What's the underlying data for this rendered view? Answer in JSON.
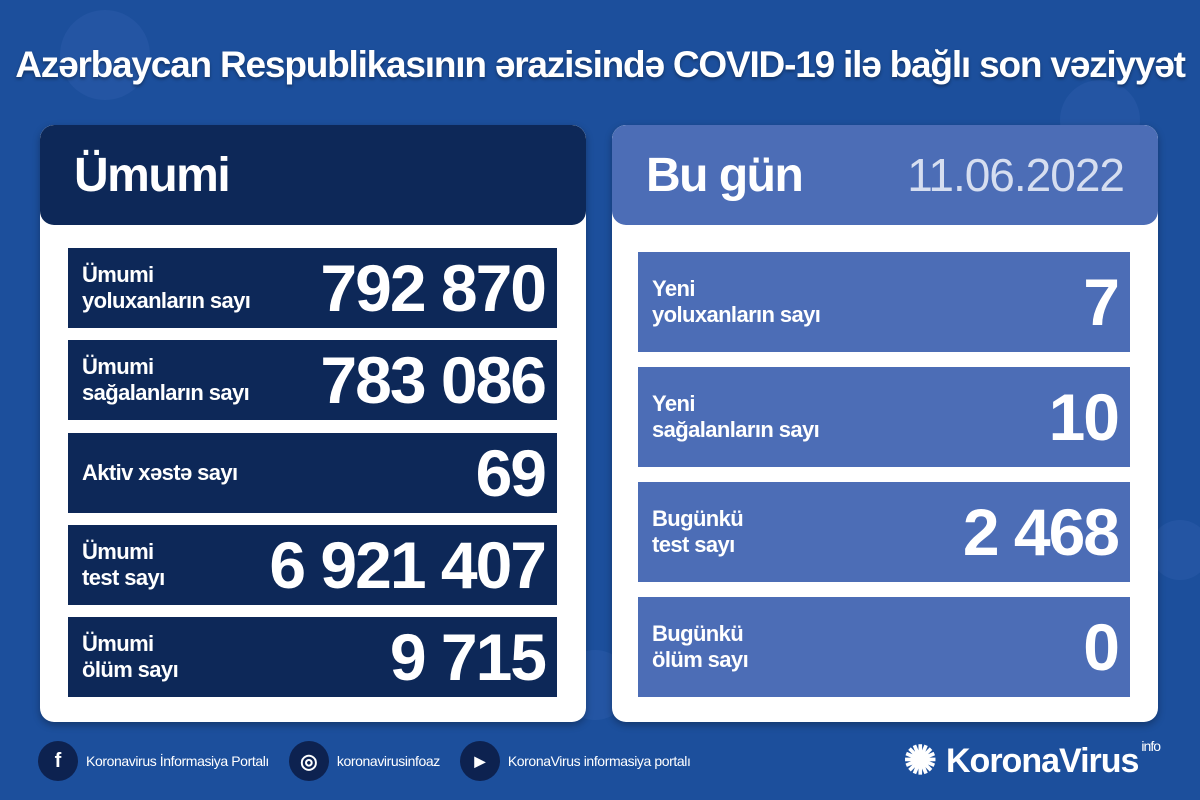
{
  "title": "Azərbaycan Respublikasının ərazisində COVID-19 ilə bağlı son vəziyyət",
  "total": {
    "heading": "Ümumi",
    "rows": [
      {
        "label": "Ümumi\nyoluxanların sayı",
        "value": "792 870"
      },
      {
        "label": "Ümumi\nsağalanların sayı",
        "value": "783 086"
      },
      {
        "label": "Aktiv xəstə sayı",
        "value": "69"
      },
      {
        "label": "Ümumi\ntest sayı",
        "value": "6 921 407"
      },
      {
        "label": "Ümumi\nölüm sayı",
        "value": "9 715"
      }
    ]
  },
  "today": {
    "heading": "Bu gün",
    "date": "11.06.2022",
    "rows": [
      {
        "label": "Yeni\nyoluxanların sayı",
        "value": "7"
      },
      {
        "label": "Yeni\nsağalanların sayı",
        "value": "10"
      },
      {
        "label": "Bugünkü\ntest sayı",
        "value": "2 468"
      },
      {
        "label": "Bugünkü\nölüm sayı",
        "value": "0"
      }
    ]
  },
  "footer": {
    "facebook": "Koronavirus İnformasiya Portalı",
    "instagram": "koronavirusinfoaz",
    "youtube": "KoronaVirus informasiya portalı",
    "brand": "KoronaVirus",
    "brand_sup": "info"
  },
  "colors": {
    "background": "#1c4f9c",
    "dark_panel": "#0d2858",
    "light_panel": "#4c6db6"
  }
}
